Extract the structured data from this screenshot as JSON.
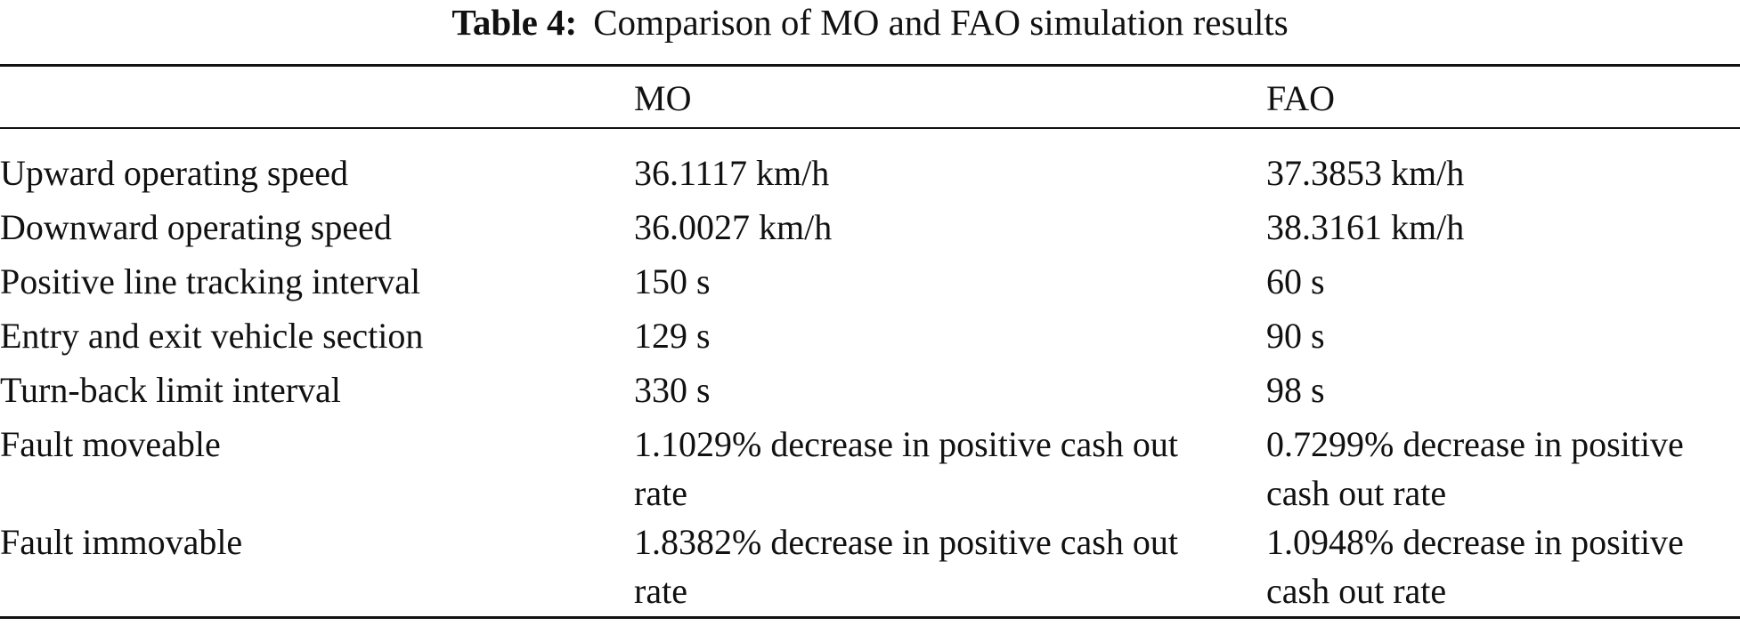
{
  "caption": {
    "label": "Table 4:",
    "text": "Comparison of MO and FAO simulation results"
  },
  "table": {
    "headers": [
      "",
      "MO",
      "FAO"
    ],
    "rows": [
      {
        "metric": "Upward operating speed",
        "mo": "36.1117 km/h",
        "fao": "37.3853 km/h"
      },
      {
        "metric": "Downward operating speed",
        "mo": "36.0027 km/h",
        "fao": "38.3161 km/h"
      },
      {
        "metric": "Positive line tracking interval",
        "mo": "150 s",
        "fao": "60 s"
      },
      {
        "metric": "Entry and exit vehicle section",
        "mo": "129 s",
        "fao": "90 s"
      },
      {
        "metric": "Turn-back limit interval",
        "mo": "330 s",
        "fao": "98 s"
      },
      {
        "metric": "Fault moveable",
        "mo": "1.1029% decrease in positive cash out rate",
        "fao": "0.7299% decrease in positive cash out rate"
      },
      {
        "metric": "Fault immovable",
        "mo": "1.8382% decrease in positive cash out rate",
        "fao": "1.0948% decrease in positive cash out rate"
      }
    ]
  }
}
